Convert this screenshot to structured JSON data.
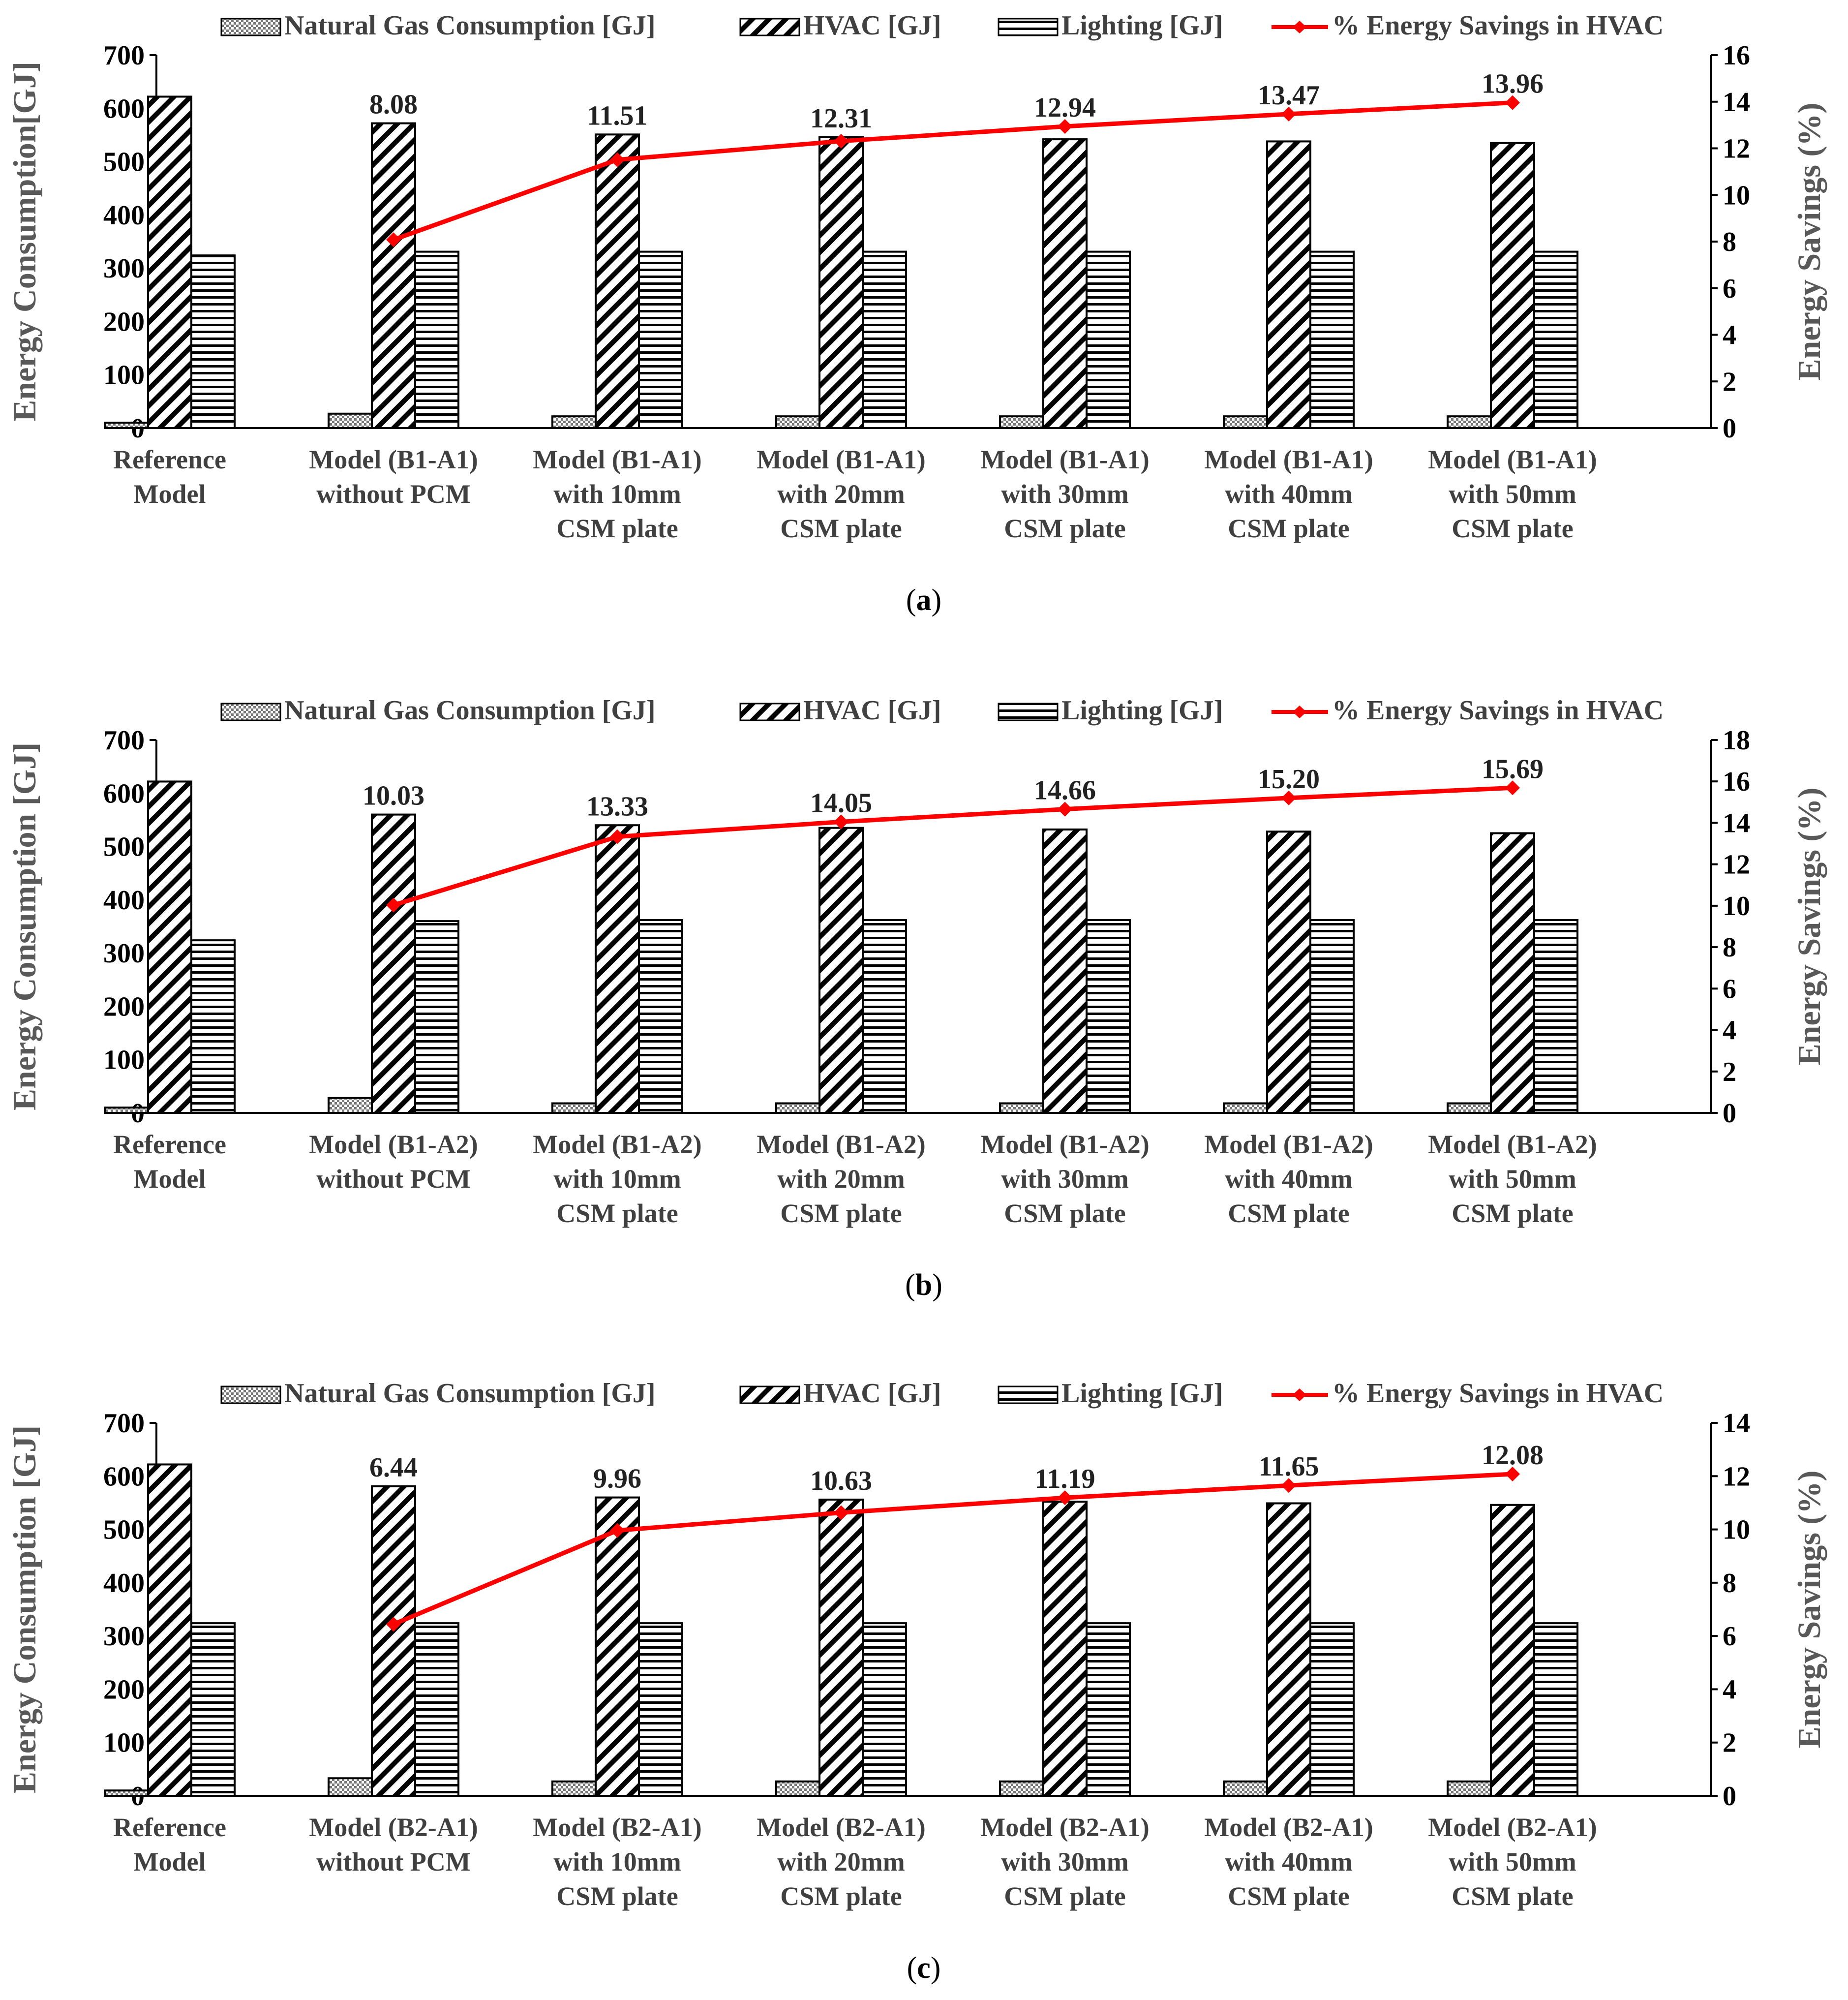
{
  "legend": {
    "gas": "Natural Gas Consumption [GJ]",
    "hvac": "HVAC [GJ]",
    "lighting": "Lighting [GJ]",
    "savings": "% Energy Savings in HVAC"
  },
  "colors": {
    "line": "#ff0000",
    "axis": "#000000",
    "label": "#595959"
  },
  "chart_data": [
    {
      "type": "bar",
      "panel": "(a)",
      "panel_letter": "a",
      "ylabel": "Energy Consumption[GJ]",
      "y2label": "Energy Savings (%)",
      "ylim": [
        0,
        700
      ],
      "yticks": [
        0,
        100,
        200,
        300,
        400,
        500,
        600,
        700
      ],
      "y2lim": [
        0,
        16
      ],
      "y2ticks": [
        0,
        2,
        4,
        6,
        8,
        10,
        12,
        14,
        16
      ],
      "categories": [
        [
          "Reference",
          "Model"
        ],
        [
          "Model (B1-A1)",
          "without PCM"
        ],
        [
          "Model (B1-A1)",
          "with 10mm",
          "CSM plate"
        ],
        [
          "Model (B1-A1)",
          "with 20mm",
          "CSM plate"
        ],
        [
          "Model (B1-A1)",
          "with 30mm",
          "CSM plate"
        ],
        [
          "Model (B1-A1)",
          "with 40mm",
          "CSM plate"
        ],
        [
          "Model (B1-A1)",
          "with 50mm",
          "CSM plate"
        ]
      ],
      "series": [
        {
          "name": "Natural Gas Consumption [GJ]",
          "values": [
            10,
            27,
            22,
            22,
            22,
            22,
            22
          ]
        },
        {
          "name": "HVAC [GJ]",
          "values": [
            622,
            572,
            551,
            546,
            542,
            538,
            535
          ]
        },
        {
          "name": "Lighting [GJ]",
          "values": [
            324,
            331,
            331,
            331,
            331,
            331,
            331
          ]
        }
      ],
      "line": {
        "name": "% Energy Savings in HVAC",
        "values": [
          null,
          8.08,
          11.51,
          12.31,
          12.94,
          13.47,
          13.96
        ],
        "labels": [
          "",
          "8.08",
          "11.51",
          "12.31",
          "12.94",
          "13.47",
          "13.96"
        ]
      }
    },
    {
      "type": "bar",
      "panel": "(b)",
      "panel_letter": "b",
      "ylabel": "Energy Consumption [GJ]",
      "y2label": "Energy Savings (%)",
      "ylim": [
        0,
        700
      ],
      "yticks": [
        0,
        100,
        200,
        300,
        400,
        500,
        600,
        700
      ],
      "y2lim": [
        0,
        18
      ],
      "y2ticks": [
        0,
        2,
        4,
        6,
        8,
        10,
        12,
        14,
        16,
        18
      ],
      "categories": [
        [
          "Reference",
          "Model"
        ],
        [
          "Model (B1-A2)",
          "without PCM"
        ],
        [
          "Model (B1-A2)",
          "with 10mm",
          "CSM plate"
        ],
        [
          "Model (B1-A2)",
          "with 20mm",
          "CSM plate"
        ],
        [
          "Model (B1-A2)",
          "with 30mm",
          "CSM plate"
        ],
        [
          "Model (B1-A2)",
          "with 40mm",
          "CSM plate"
        ],
        [
          "Model (B1-A2)",
          "with 50mm",
          "CSM plate"
        ]
      ],
      "series": [
        {
          "name": "Natural Gas Consumption [GJ]",
          "values": [
            10,
            28,
            18,
            18,
            18,
            18,
            18
          ]
        },
        {
          "name": "HVAC [GJ]",
          "values": [
            622,
            560,
            540,
            535,
            532,
            528,
            525
          ]
        },
        {
          "name": "Lighting [GJ]",
          "values": [
            324,
            360,
            362,
            362,
            362,
            362,
            362
          ]
        }
      ],
      "line": {
        "name": "% Energy Savings in HVAC",
        "values": [
          null,
          10.03,
          13.33,
          14.05,
          14.66,
          15.2,
          15.69
        ],
        "labels": [
          "",
          "10.03",
          "13.33",
          "14.05",
          "14.66",
          "15.20",
          "15.69"
        ]
      }
    },
    {
      "type": "bar",
      "panel": "(c)",
      "panel_letter": "c",
      "ylabel": "Energy Consumption [GJ]",
      "y2label": "Energy Savings (%)",
      "ylim": [
        0,
        700
      ],
      "yticks": [
        0,
        100,
        200,
        300,
        400,
        500,
        600,
        700
      ],
      "y2lim": [
        0,
        14
      ],
      "y2ticks": [
        0,
        2,
        4,
        6,
        8,
        10,
        12,
        14
      ],
      "categories": [
        [
          "Reference",
          "Model"
        ],
        [
          "Model (B2-A1)",
          "without PCM"
        ],
        [
          "Model (B2-A1)",
          "with 10mm",
          "CSM plate"
        ],
        [
          "Model (B2-A1)",
          "with 20mm",
          "CSM plate"
        ],
        [
          "Model (B2-A1)",
          "with 30mm",
          "CSM plate"
        ],
        [
          "Model (B2-A1)",
          "with 40mm",
          "CSM plate"
        ],
        [
          "Model (B2-A1)",
          "with 50mm",
          "CSM plate"
        ]
      ],
      "series": [
        {
          "name": "Natural Gas Consumption [GJ]",
          "values": [
            10,
            33,
            27,
            27,
            27,
            27,
            27
          ]
        },
        {
          "name": "HVAC [GJ]",
          "values": [
            622,
            581,
            560,
            556,
            552,
            549,
            546
          ]
        },
        {
          "name": "Lighting [GJ]",
          "values": [
            324,
            324,
            324,
            324,
            324,
            324,
            324
          ]
        }
      ],
      "line": {
        "name": "% Energy Savings in HVAC",
        "values": [
          null,
          6.44,
          9.96,
          10.63,
          11.19,
          11.65,
          12.08
        ],
        "labels": [
          "",
          "6.44",
          "9.96",
          "10.63",
          "11.19",
          "11.65",
          "12.08"
        ]
      }
    }
  ]
}
